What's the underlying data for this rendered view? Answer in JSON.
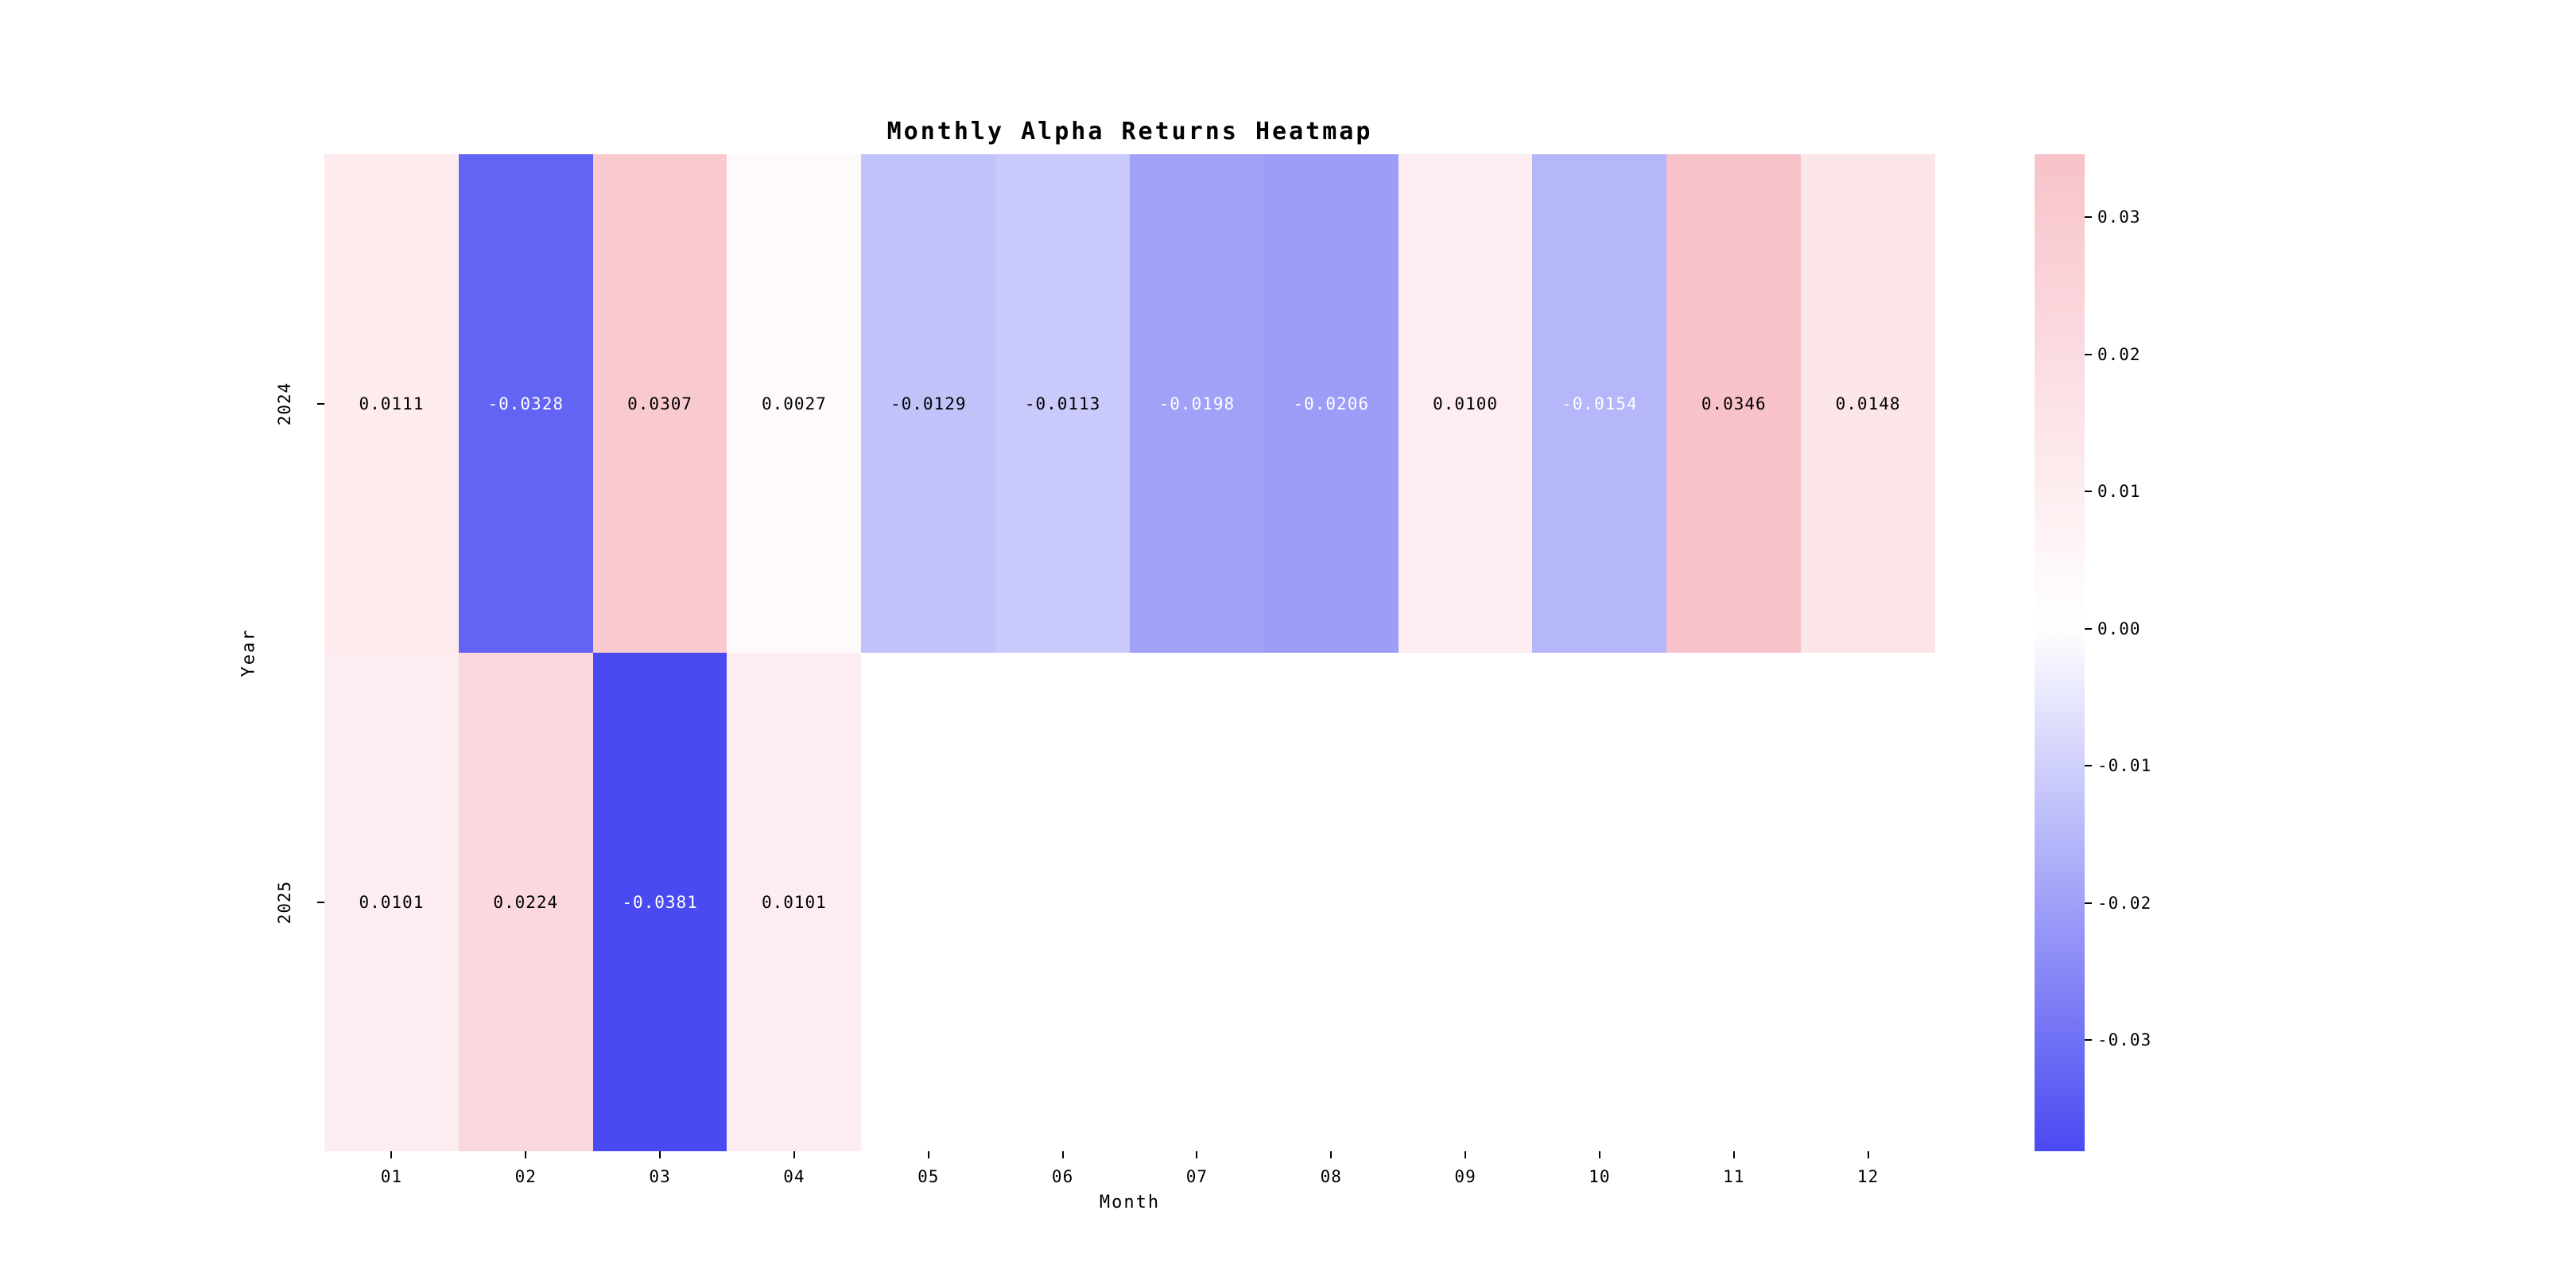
{
  "chart_data": {
    "type": "heatmap",
    "title": "Monthly Alpha Returns Heatmap",
    "xlabel": "Month",
    "ylabel": "Year",
    "x_categories": [
      "01",
      "02",
      "03",
      "04",
      "05",
      "06",
      "07",
      "08",
      "09",
      "10",
      "11",
      "12"
    ],
    "y_categories": [
      "2024",
      "2025"
    ],
    "values": [
      [
        0.0111,
        -0.0328,
        0.0307,
        0.0027,
        -0.0129,
        -0.0113,
        -0.0198,
        -0.0206,
        0.01,
        -0.0154,
        0.0346,
        0.0148
      ],
      [
        0.0101,
        0.0224,
        -0.0381,
        0.0101,
        null,
        null,
        null,
        null,
        null,
        null,
        null,
        null
      ]
    ],
    "annotations": [
      [
        "0.0111",
        "-0.0328",
        "0.0307",
        "0.0027",
        "-0.0129",
        "-0.0113",
        "-0.0198",
        "-0.0206",
        "0.0100",
        "-0.0154",
        "0.0346",
        "0.0148"
      ],
      [
        "0.0101",
        "0.0224",
        "-0.0381",
        "0.0101",
        "",
        "",
        "",
        "",
        "",
        "",
        "",
        ""
      ]
    ],
    "vmin": -0.0381,
    "vmax": 0.0346,
    "colorbar_position": "right",
    "grid": false,
    "colorbar_ticks": [
      {
        "label": "0.03",
        "value": 0.03
      },
      {
        "label": "0.02",
        "value": 0.02
      },
      {
        "label": "0.01",
        "value": 0.01
      },
      {
        "label": "0.00",
        "value": 0.0
      },
      {
        "label": "-0.01",
        "value": -0.01
      },
      {
        "label": "-0.02",
        "value": -0.02
      },
      {
        "label": "-0.03",
        "value": -0.03
      }
    ],
    "colors": {
      "positive_end": "#f8c2ca",
      "negative_end": "#4a4af2",
      "center": "#ffffff",
      "nan_cell": "#ffffff",
      "annotation_dark": "#000000",
      "annotation_light": "#ffffff",
      "tick": "#000000"
    }
  }
}
